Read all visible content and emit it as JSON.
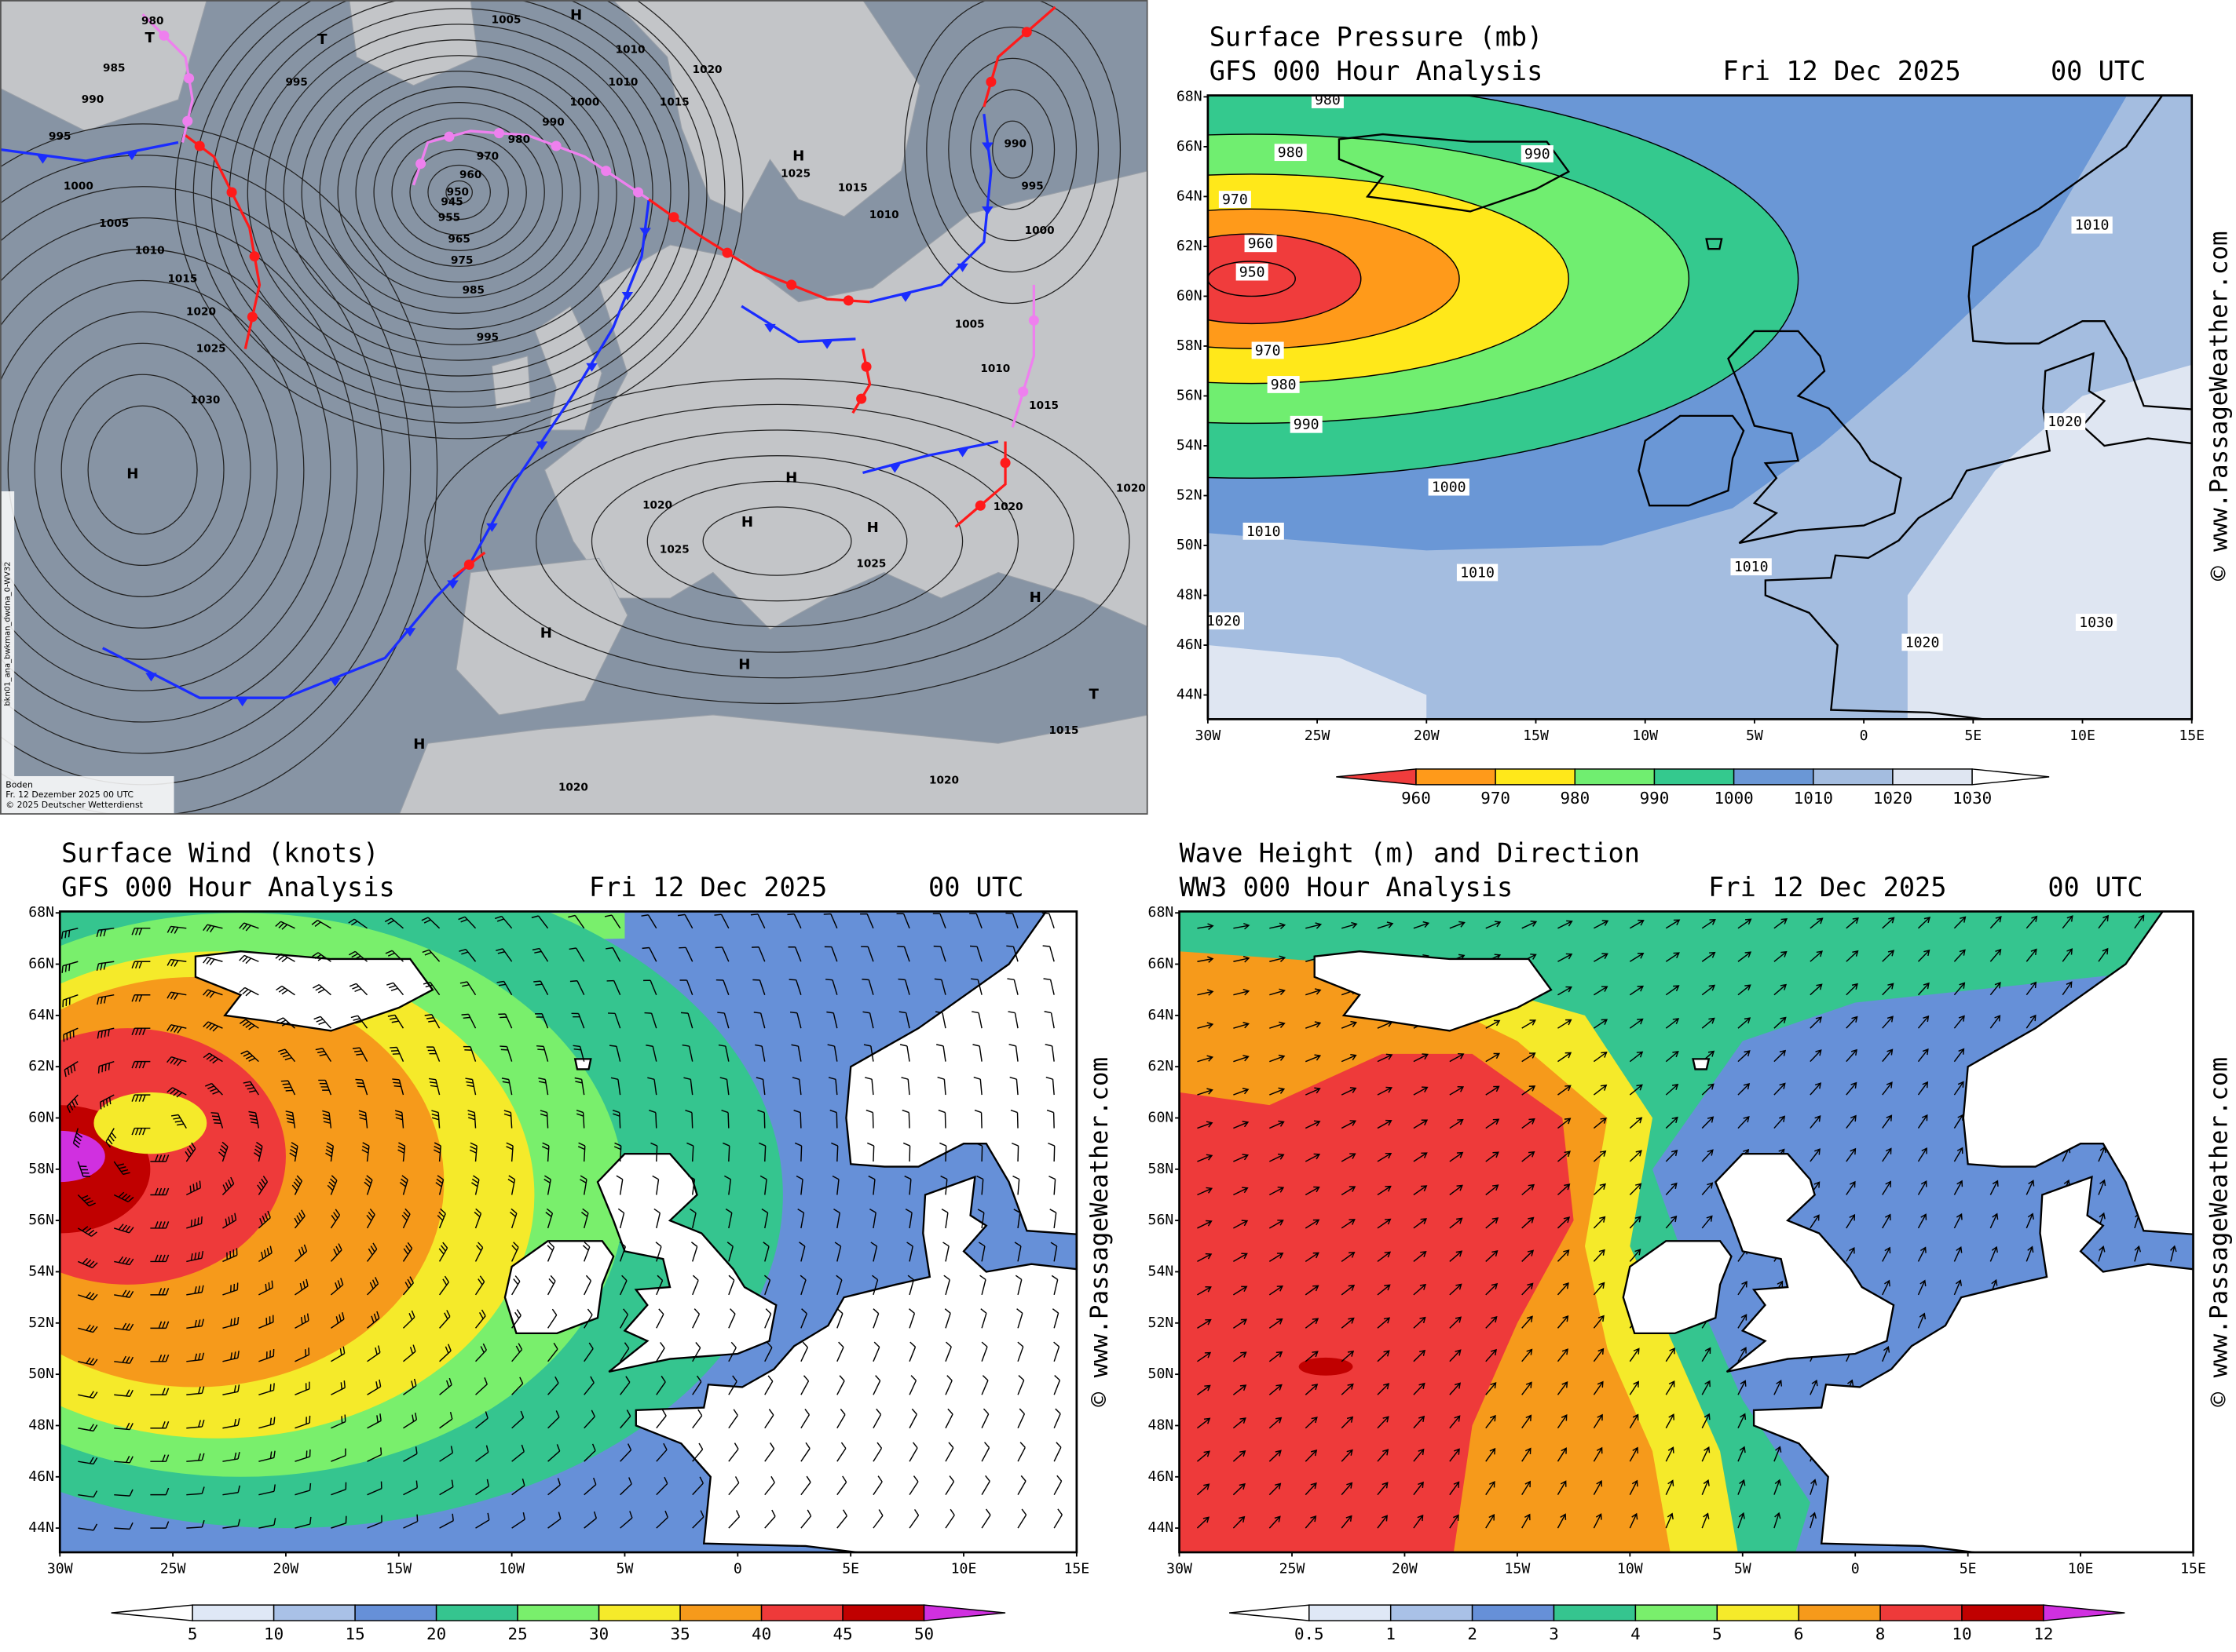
{
  "analysis_map": {
    "isobar_labels": [
      "980",
      "T",
      "985",
      "990",
      "995",
      "1000",
      "1005",
      "1010",
      "1015",
      "1020",
      "1025",
      "1030",
      "H",
      "995",
      "T",
      "1005",
      "H",
      "990",
      "980",
      "970",
      "960",
      "950",
      "945",
      "955",
      "965",
      "975",
      "985",
      "995",
      "1000",
      "1010",
      "1010",
      "1020",
      "1015",
      "H",
      "1025",
      "1015",
      "1010",
      "990",
      "995",
      "1000",
      "1005",
      "1010",
      "1015",
      "1020",
      "H",
      "H",
      "1025",
      "1025",
      "H",
      "1020",
      "1020",
      "H",
      "H",
      "H",
      "T",
      "1015",
      "H",
      "1020",
      "1020"
    ],
    "footer": [
      "Boden",
      "Fr. 12 Dezember 2025 00 UTC",
      "© 2025 Deutscher Wetterdienst"
    ],
    "side_label": "bkn01_ana_bwkman_dwdna_0-WV32"
  },
  "lat_labels": [
    "68N",
    "66N",
    "64N",
    "62N",
    "60N",
    "58N",
    "56N",
    "54N",
    "52N",
    "50N",
    "48N",
    "46N",
    "44N"
  ],
  "lon_labels": [
    "30W",
    "25W",
    "20W",
    "15W",
    "10W",
    "5W",
    "0",
    "5E",
    "10E",
    "15E"
  ],
  "watermark": "© www.PassageWeather.com",
  "panels": [
    {
      "title": "Surface Pressure (mb)",
      "subtitle": "GFS 000 Hour Analysis",
      "date": "Fri 12 Dec 2025",
      "time": "00 UTC",
      "contour_labels": [
        980,
        990,
        980,
        970,
        960,
        950,
        970,
        980,
        990,
        1000,
        1010,
        1010,
        1010,
        1010,
        1020,
        1020,
        1020,
        1030
      ],
      "colorbar": [
        960,
        970,
        980,
        990,
        1000,
        1010,
        1020,
        1030
      ]
    },
    {
      "title": "Surface Wind (knots)",
      "subtitle": "GFS 000 Hour Analysis",
      "date": "Fri 12 Dec 2025",
      "time": "00 UTC",
      "colorbar": [
        5,
        10,
        15,
        20,
        25,
        30,
        35,
        40,
        45,
        50
      ]
    },
    {
      "title": "Wave Height (m) and Direction",
      "subtitle": "WW3 000 Hour Analysis",
      "date": "Fri 12 Dec 2025",
      "time": "00 UTC",
      "colorbar": [
        0.5,
        1,
        2,
        3,
        4,
        5,
        6,
        8,
        10,
        12
      ]
    }
  ]
}
